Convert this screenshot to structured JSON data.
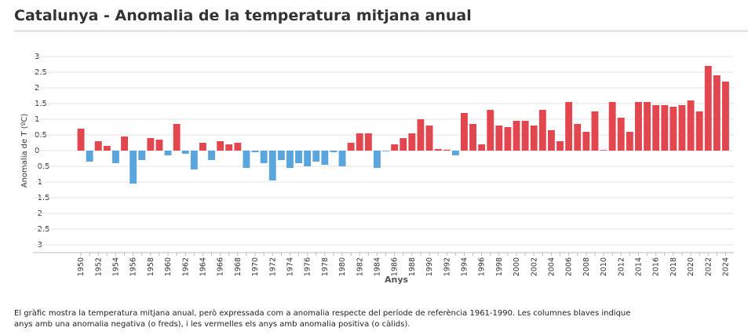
{
  "chart_data": {
    "type": "bar",
    "title": "Catalunya - Anomalia de la temperatura mitjana anual",
    "y_label": "Anomalia de T (ºC)",
    "x_label": "Anys",
    "note": [
      "El gràfic mostra la temperatura mitjana anual, però expressada com a anomalia respecte del període de referència 1961-1990. Les columnes blaves indique",
      "anys amb una anomalia negativa (o freds), i les vermelles els anys amb anomalia positiva (o càlids)."
    ],
    "categories": [
      "1950",
      null,
      "1952",
      null,
      "1954",
      null,
      "1956",
      null,
      "1958",
      null,
      "1960",
      null,
      "1962",
      null,
      "1964",
      null,
      "1966",
      null,
      "1968",
      null,
      "1970",
      null,
      "1972",
      null,
      "1974",
      null,
      "1976",
      null,
      "1978",
      null,
      "1980",
      null,
      "1982",
      null,
      "1984",
      null,
      "1986",
      null,
      "1988",
      null,
      "1990",
      null,
      "1992",
      null,
      "1994",
      null,
      "1996",
      null,
      "1998",
      null,
      "2000",
      null,
      "2002",
      null,
      "2004",
      null,
      "2006",
      null,
      "2008",
      null,
      "2010",
      null,
      "2012",
      null,
      "2014",
      null,
      "2016",
      null,
      "2018",
      null,
      "2020",
      null,
      "2022",
      null,
      "2024"
    ],
    "values": [
      0.7,
      -0.35,
      0.3,
      0.15,
      -0.4,
      0.45,
      -1.05,
      -0.3,
      0.4,
      0.35,
      -0.15,
      0.85,
      -0.1,
      -0.6,
      0.25,
      -0.3,
      0.3,
      0.2,
      0.25,
      -0.55,
      -0.05,
      -0.4,
      -0.95,
      -0.3,
      -0.55,
      -0.4,
      -0.5,
      -0.35,
      -0.45,
      -0.05,
      -0.5,
      0.25,
      0.55,
      0.55,
      -0.55,
      -0.02,
      0.2,
      0.4,
      0.55,
      1.0,
      0.8,
      0.05,
      0.03,
      -0.15,
      1.2,
      0.85,
      0.2,
      1.3,
      0.8,
      0.75,
      0.95,
      0.95,
      0.8,
      1.3,
      0.65,
      0.3,
      1.55,
      0.85,
      0.6,
      1.25,
      0.02,
      1.55,
      1.05,
      0.6,
      1.55,
      1.55,
      1.45,
      1.45,
      1.4,
      1.45,
      1.6,
      1.25,
      2.7,
      2.4,
      2.2
    ],
    "colors": {
      "positive": "#e2474f",
      "negative": "#5aa5dc"
    },
    "ylim": [
      -3.25,
      3.25
    ],
    "yticks": [
      3,
      2.5,
      2,
      1.5,
      1,
      0.5,
      0,
      -0.5,
      -1,
      -1.5,
      -2,
      -2.5,
      -3
    ],
    "grid": true
  }
}
